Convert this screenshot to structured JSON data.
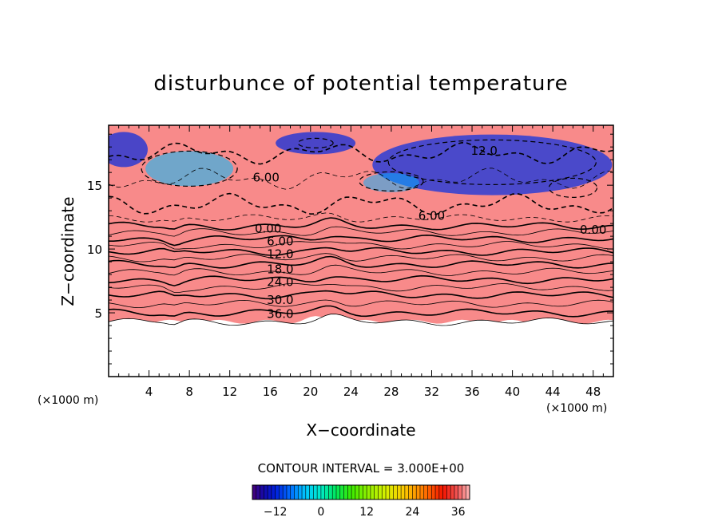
{
  "chart_data": {
    "type": "heatmap",
    "title": "disturbunce of potential temperature",
    "xlabel": "X−coordinate",
    "ylabel": "Z−coordinate",
    "x_unit": "(×1000 m)",
    "y_unit": "(×1000 m)",
    "xlim": [
      0,
      50
    ],
    "ylim": [
      0,
      19.7
    ],
    "x_ticks": [
      4,
      8,
      12,
      16,
      20,
      24,
      28,
      32,
      36,
      40,
      44,
      48
    ],
    "y_ticks": [
      5,
      10,
      15
    ],
    "contour_interval_text": "CONTOUR INTERVAL = 3.000E+00",
    "contour_labels": [
      {
        "text": "6.00",
        "x": 15.6,
        "z": 15.6
      },
      {
        "text": "12.0",
        "x": 37.2,
        "z": 17.7
      },
      {
        "text": "6.00",
        "x": 32.0,
        "z": 12.6
      },
      {
        "text": "0.00",
        "x": 15.8,
        "z": 11.6
      },
      {
        "text": "0.00",
        "x": 48.0,
        "z": 11.5
      },
      {
        "text": "6.00",
        "x": 17.0,
        "z": 10.6
      },
      {
        "text": "12.0",
        "x": 17.0,
        "z": 9.6
      },
      {
        "text": "18.0",
        "x": 17.0,
        "z": 8.4
      },
      {
        "text": "24.0",
        "x": 17.0,
        "z": 7.4
      },
      {
        "text": "30.0",
        "x": 17.0,
        "z": 6.0
      },
      {
        "text": "36.0",
        "x": 17.0,
        "z": 4.9
      }
    ],
    "colorbar": {
      "range": [
        -18,
        39
      ],
      "ticks": [
        -12,
        0,
        12,
        24,
        36
      ],
      "tick_labels": [
        "−12",
        "0",
        "12",
        "24",
        "36"
      ]
    },
    "band_levels_z": [
      {
        "z": 4.3,
        "value": 39
      },
      {
        "z": 5.0,
        "value": 36
      },
      {
        "z": 5.7,
        "value": 33
      },
      {
        "z": 6.4,
        "value": 30
      },
      {
        "z": 7.0,
        "value": 27
      },
      {
        "z": 7.6,
        "value": 24
      },
      {
        "z": 8.2,
        "value": 21
      },
      {
        "z": 8.8,
        "value": 18
      },
      {
        "z": 9.3,
        "value": 15
      },
      {
        "z": 9.8,
        "value": 12
      },
      {
        "z": 10.3,
        "value": 9
      },
      {
        "z": 10.8,
        "value": 6
      },
      {
        "z": 11.3,
        "value": 3
      },
      {
        "z": 11.8,
        "value": 0
      },
      {
        "z": 12.4,
        "value": -3
      },
      {
        "z": 13.5,
        "value": -6
      },
      {
        "z": 15.5,
        "value": -9
      },
      {
        "z": 17.5,
        "value": -12
      },
      {
        "z": 19.7,
        "value": -12
      }
    ]
  }
}
